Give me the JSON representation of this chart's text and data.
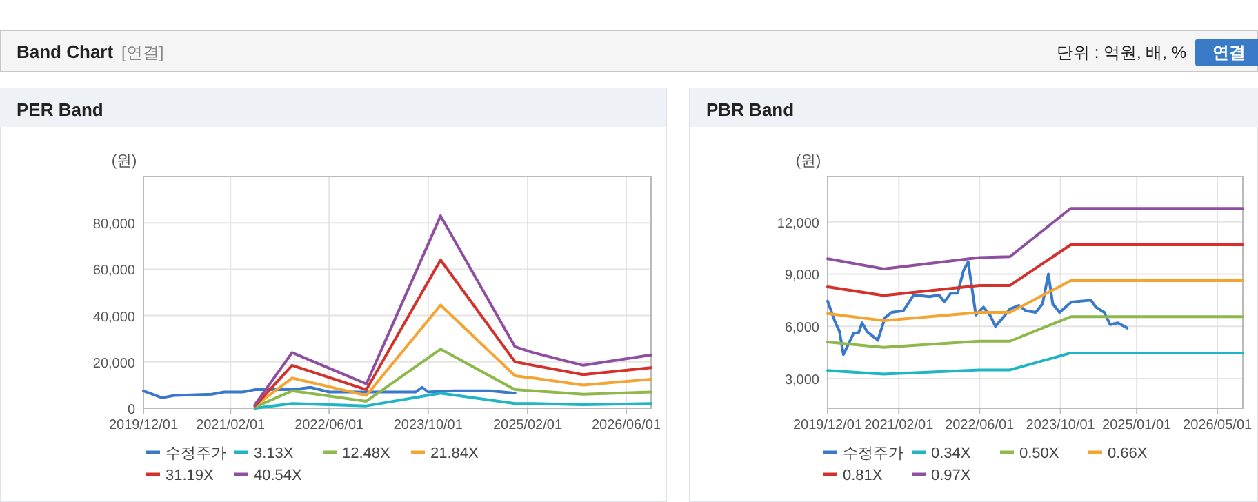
{
  "chart_data": [
    {
      "type": "other",
      "title": "Band Chart",
      "annotations": [
        "[연결]",
        "단위 : 억원, 배, %",
        "연결"
      ]
    },
    {
      "type": "line",
      "title": "PER Band",
      "ylabel": "(원)",
      "grid": true,
      "legend": "bottom",
      "xlim": [
        "2019-12-01",
        "2026-10-01"
      ],
      "ylim": [
        0,
        100000
      ],
      "xticks": [
        {
          "value": "2019-12-01",
          "label": "2019/12/01"
        },
        {
          "value": "2021-02-01",
          "label": "2021/02/01"
        },
        {
          "value": "2022-06-01",
          "label": "2022/06/01"
        },
        {
          "value": "2023-10-01",
          "label": "2023/10/01"
        },
        {
          "value": "2025-02-01",
          "label": "2025/02/01"
        },
        {
          "value": "2026-06-01",
          "label": "2026/06/01"
        }
      ],
      "yticks": [
        0,
        {
          "value": 20000,
          "label": "20,000"
        },
        {
          "value": 40000,
          "label": "40,000"
        },
        {
          "value": 60000,
          "label": "60,000"
        },
        {
          "value": 80000,
          "label": "80,000"
        }
      ],
      "x": [
        "2021-06-01",
        "2021-12-01",
        "2022-12-01",
        "2023-12-01",
        "2024-12-01",
        "2025-03-01",
        "2025-11-01",
        "2026-10-01"
      ],
      "series": [
        {
          "name": "수정주가",
          "color": "#3a78c9",
          "x": [
            "2019-12-01",
            "2020-03-01",
            "2020-05-01",
            "2020-11-01",
            "2021-01-01",
            "2021-04-01",
            "2021-06-01",
            "2021-12-01",
            "2022-03-01",
            "2022-06-01",
            "2023-01-01",
            "2023-08-01",
            "2023-09-01",
            "2023-10-01",
            "2024-02-01",
            "2024-08-01",
            "2024-12-01"
          ],
          "values": [
            7500,
            4500,
            5500,
            6000,
            7000,
            7000,
            8000,
            8000,
            9000,
            7000,
            7000,
            7000,
            9000,
            7000,
            7500,
            7500,
            6500
          ]
        },
        {
          "name": "3.13X",
          "color": "#1fb5c4",
          "values": [
            0,
            2000,
            1000,
            6500,
            2000,
            2000,
            1500,
            2000
          ]
        },
        {
          "name": "12.48X",
          "color": "#8db84a",
          "values": [
            500,
            7500,
            3000,
            25500,
            8000,
            7500,
            6000,
            7000
          ]
        },
        {
          "name": "21.84X",
          "color": "#f5a431",
          "values": [
            1000,
            13000,
            5500,
            44500,
            14000,
            13000,
            10000,
            12500
          ]
        },
        {
          "name": "31.19X",
          "color": "#d2312c",
          "values": [
            1000,
            18500,
            8000,
            64000,
            20000,
            18500,
            14500,
            17500
          ]
        },
        {
          "name": "40.54X",
          "color": "#8e4fa0",
          "values": [
            1500,
            24000,
            10500,
            83000,
            26500,
            24000,
            18500,
            23000
          ]
        }
      ]
    },
    {
      "type": "line",
      "title": "PBR Band",
      "ylabel": "(원)",
      "grid": true,
      "legend": "bottom",
      "xlim": [
        "2019-12-01",
        "2026-10-01"
      ],
      "ylim": [
        1300,
        14600
      ],
      "xticks": [
        {
          "value": "2019-12-01",
          "label": "2019/12/01"
        },
        {
          "value": "2021-02-01",
          "label": "2021/02/01"
        },
        {
          "value": "2022-06-01",
          "label": "2022/06/01"
        },
        {
          "value": "2023-10-01",
          "label": "2023/10/01"
        },
        {
          "value": "2025-01-01",
          "label": "2025/01/01"
        },
        {
          "value": "2026-05-01",
          "label": "2026/05/01"
        }
      ],
      "yticks": [
        {
          "value": 3000,
          "label": "3,000"
        },
        {
          "value": 6000,
          "label": "6,000"
        },
        {
          "value": 9000,
          "label": "9,000"
        },
        {
          "value": 12000,
          "label": "12,000"
        }
      ],
      "x": [
        "2019-12-01",
        "2020-11-01",
        "2022-06-01",
        "2022-12-01",
        "2023-12-01",
        "2026-10-01"
      ],
      "series": [
        {
          "name": "수정주가",
          "color": "#3a78c9",
          "x": [
            "2019-12-01",
            "2020-01-15",
            "2020-02-10",
            "2020-03-05",
            "2020-04-05",
            "2020-05-05",
            "2020-06-05",
            "2020-06-25",
            "2020-07-25",
            "2020-09-28",
            "2020-11-10",
            "2020-12-20",
            "2021-03-01",
            "2021-05-01",
            "2021-08-05",
            "2021-10-01",
            "2021-11-01",
            "2021-12-10",
            "2022-01-20",
            "2022-02-25",
            "2022-03-25",
            "2022-05-10",
            "2022-06-25",
            "2022-08-05",
            "2022-09-05",
            "2022-10-20",
            "2022-12-01",
            "2023-01-25",
            "2023-03-05",
            "2023-05-05",
            "2023-06-15",
            "2023-07-20",
            "2023-08-15",
            "2023-09-25",
            "2023-12-05",
            "2024-04-01",
            "2024-05-01",
            "2024-06-20",
            "2024-07-25",
            "2024-09-10",
            "2024-11-05"
          ],
          "values": [
            7450,
            6250,
            5720,
            4380,
            5000,
            5600,
            5650,
            6200,
            5700,
            5200,
            6500,
            6800,
            6900,
            7800,
            7700,
            7800,
            7400,
            7900,
            7900,
            9200,
            9700,
            6650,
            7100,
            6600,
            6000,
            6500,
            7000,
            7200,
            6900,
            6800,
            7300,
            9000,
            7300,
            6800,
            7400,
            7500,
            7100,
            6800,
            6100,
            6200,
            5900
          ]
        },
        {
          "name": "0.34X",
          "color": "#1fb5c4",
          "values": [
            3470,
            3260,
            3500,
            3500,
            4470,
            4470
          ]
        },
        {
          "name": "0.50X",
          "color": "#8db84a",
          "values": [
            5100,
            4790,
            5150,
            5150,
            6550,
            6550
          ]
        },
        {
          "name": "0.66X",
          "color": "#f5a431",
          "values": [
            6730,
            6330,
            6800,
            6800,
            8620,
            8620
          ]
        },
        {
          "name": "0.81X",
          "color": "#d2312c",
          "values": [
            8270,
            7770,
            8350,
            8350,
            10680,
            10680
          ]
        },
        {
          "name": "0.97X",
          "color": "#8e4fa0",
          "values": [
            9880,
            9300,
            9950,
            10000,
            12770,
            12770
          ]
        }
      ]
    }
  ]
}
